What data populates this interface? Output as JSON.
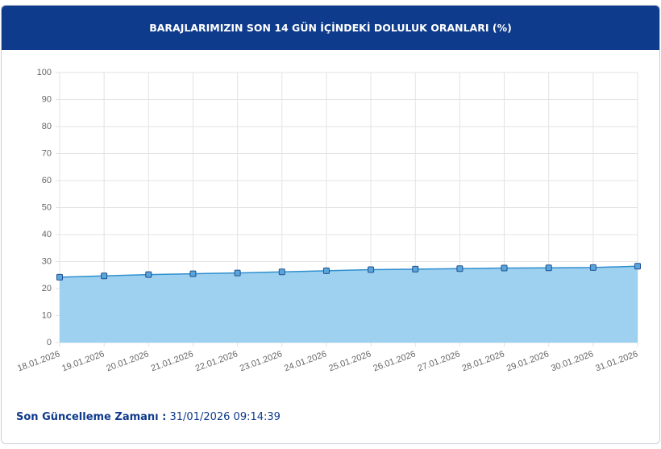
{
  "chart_data": {
    "type": "area",
    "title": "BARAJLARIMIZIN SON 14 GÜN İÇİNDEKİ DOLULUK ORANLARI (%)",
    "categories": [
      "18.01.2026",
      "19.01.2026",
      "20.01.2026",
      "21.01.2026",
      "22.01.2026",
      "23.01.2026",
      "24.01.2026",
      "25.01.2026",
      "26.01.2026",
      "27.01.2026",
      "28.01.2026",
      "29.01.2026",
      "30.01.2026",
      "31.01.2026"
    ],
    "values": [
      24.2,
      24.7,
      25.2,
      25.5,
      25.8,
      26.2,
      26.6,
      27.0,
      27.2,
      27.4,
      27.6,
      27.7,
      27.8,
      28.3
    ],
    "color": "#2f8fcf",
    "fill_color": "#9dd1ef",
    "marker_color": "#5aa6dc",
    "ylim": [
      0,
      100
    ],
    "yticks": [
      0,
      10,
      20,
      30,
      40,
      50,
      60,
      70,
      80,
      90,
      100
    ],
    "grid": true
  },
  "footer": {
    "label": "Son Güncelleme Zamanı :",
    "value": "31/01/2026 09:14:39"
  }
}
